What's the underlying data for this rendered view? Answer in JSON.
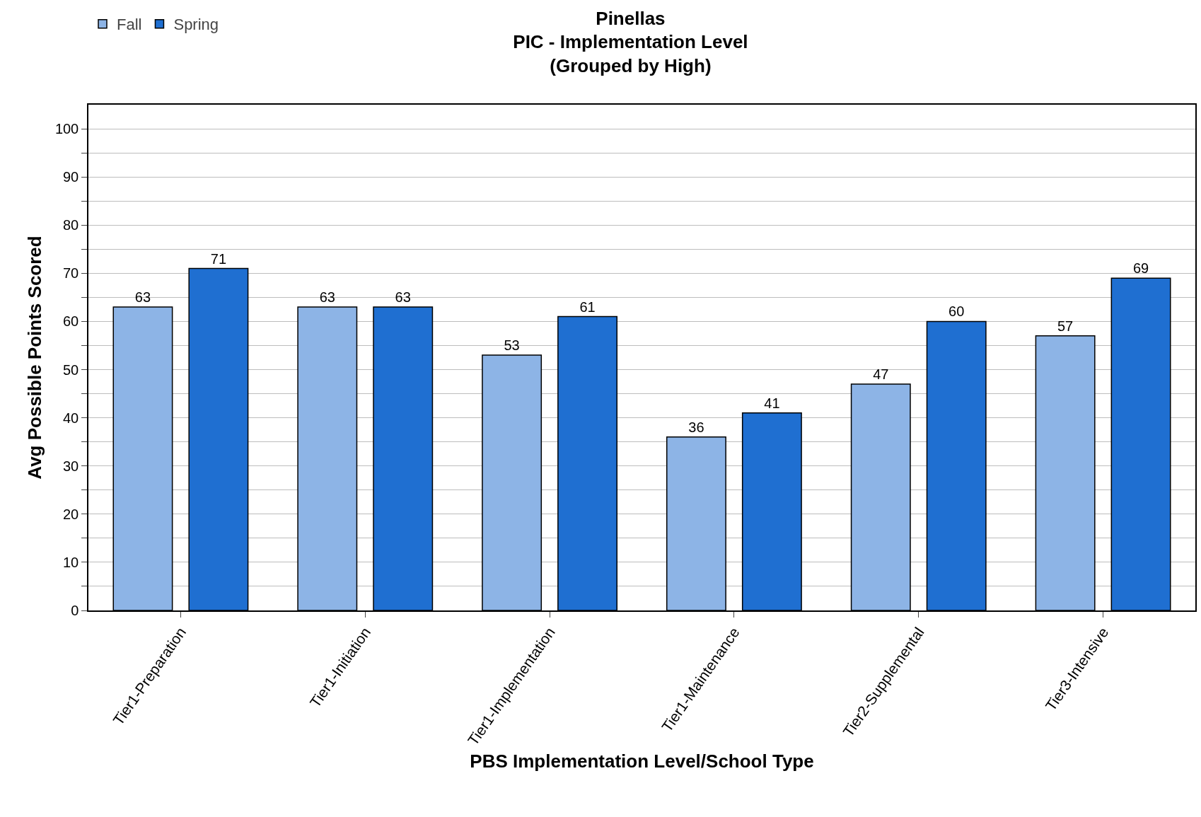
{
  "chart_data": {
    "type": "bar",
    "title": "Pinellas\nPIC - Implementation Level\n(Grouped by High)",
    "xlabel": "PBS Implementation Level/School Type",
    "ylabel": "Avg Possible Points Scored",
    "categories": [
      "Tier1-Preparation",
      "Tier1-Initiation",
      "Tier1-Implementation",
      "Tier1-Maintenance",
      "Tier2-Supplemental",
      "Tier3-Intensive"
    ],
    "series": [
      {
        "name": "Fall",
        "color": "#8db4e6",
        "values": [
          63,
          63,
          53,
          36,
          47,
          57
        ]
      },
      {
        "name": "Spring",
        "color": "#1f6fd1",
        "values": [
          71,
          63,
          61,
          41,
          60,
          69
        ]
      }
    ],
    "ylim": [
      0,
      105
    ],
    "yticks": [
      0,
      {
        "value": 5,
        "label": null
      },
      10,
      {
        "value": 15,
        "label": null
      },
      20,
      {
        "value": 25,
        "label": null
      },
      30,
      {
        "value": 35,
        "label": null
      },
      40,
      {
        "value": 45,
        "label": null
      },
      50,
      {
        "value": 55,
        "label": null
      },
      60,
      {
        "value": 65,
        "label": null
      },
      70,
      {
        "value": 75,
        "label": null
      },
      80,
      {
        "value": 85,
        "label": null
      },
      90,
      {
        "value": 95,
        "label": null
      },
      100
    ],
    "grid": true,
    "legend": "top left",
    "data_labels": true
  }
}
